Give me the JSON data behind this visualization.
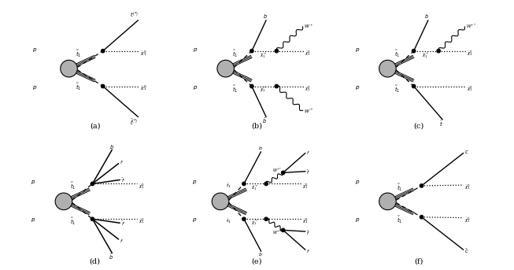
{
  "background_color": "#ffffff",
  "blob_color": "#b0b0b0",
  "blob_edge": "#000000",
  "diagrams": [
    "a",
    "b",
    "c",
    "d",
    "e",
    "f"
  ]
}
